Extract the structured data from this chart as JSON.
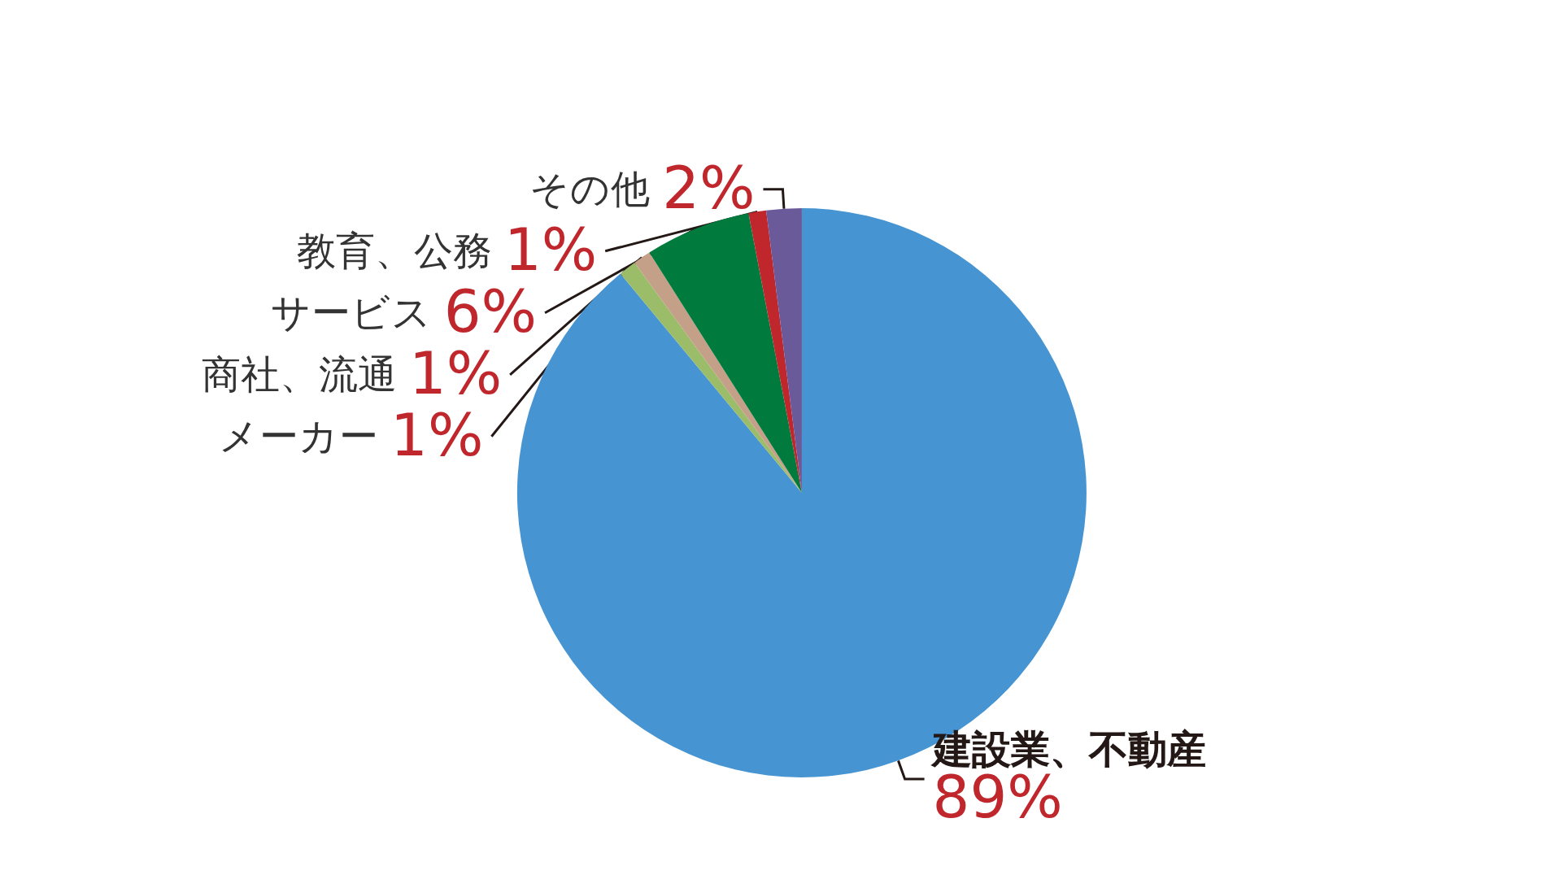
{
  "chart_data": {
    "type": "pie",
    "categories": [
      "建設業、不動産",
      "メーカー",
      "商社、流通",
      "サービス",
      "教育、公務",
      "その他"
    ],
    "values": [
      89,
      1,
      1,
      6,
      1,
      2
    ],
    "value_labels": [
      "89%",
      "1%",
      "1%",
      "6%",
      "1%",
      "2%"
    ],
    "colors": [
      "#4695d2",
      "#9bbd6a",
      "#c4a088",
      "#007a3d",
      "#c0272d",
      "#6a5a9a"
    ],
    "legend": false
  }
}
